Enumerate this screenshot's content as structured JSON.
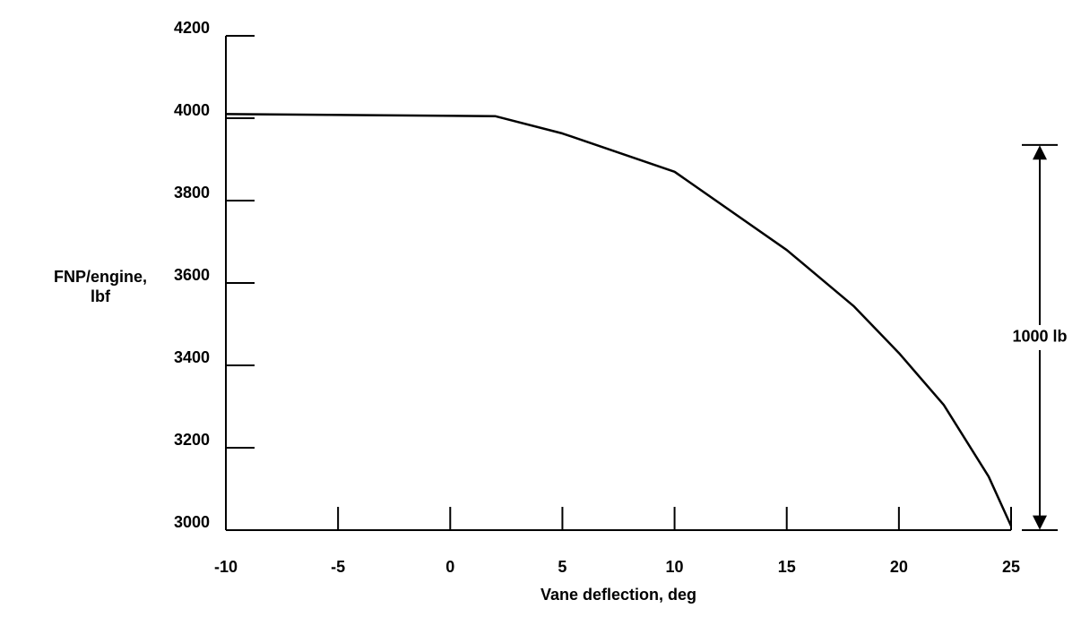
{
  "chart_data": {
    "type": "line",
    "xlabel": "Vane deflection, deg",
    "ylabel": [
      "FNP/engine,",
      "lbf"
    ],
    "x": [
      -10,
      2,
      5,
      10,
      15,
      18,
      20,
      22,
      24,
      25
    ],
    "series": [
      {
        "name": "FNP",
        "color": "#000000",
        "values": [
          4010,
          4005,
          3963,
          3870,
          3680,
          3543,
          3430,
          3304,
          3130,
          3010
        ]
      }
    ],
    "xlim": [
      -10,
      25
    ],
    "xticks": [
      -10,
      -5,
      0,
      5,
      10,
      15,
      20,
      25
    ],
    "ylim": [
      3000,
      4200
    ],
    "yticks": [
      3000,
      3200,
      3400,
      3600,
      3800,
      4000,
      4200
    ],
    "grid": false,
    "annotation": {
      "text": "1000 lb",
      "from": 3000,
      "to": 3935
    }
  }
}
